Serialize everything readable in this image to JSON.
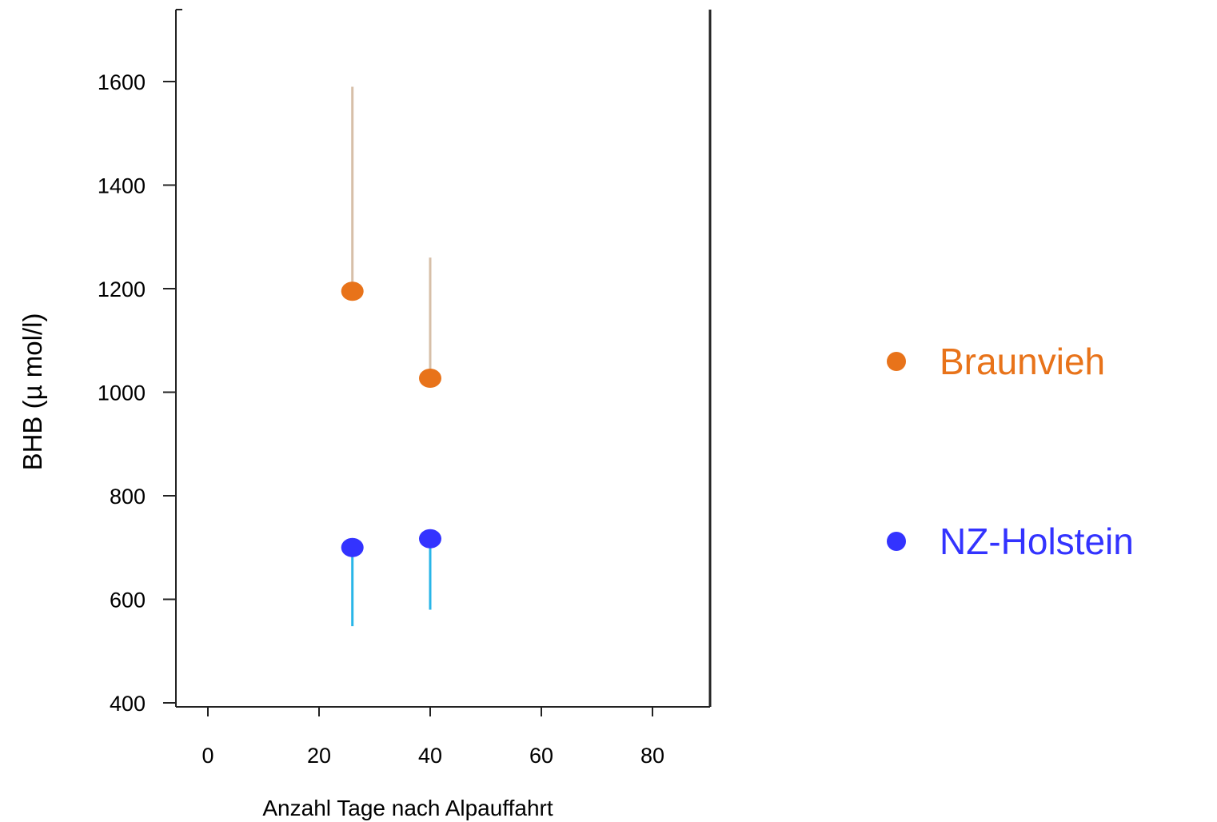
{
  "chart_data": {
    "type": "scatter",
    "title": "",
    "xlabel": "Anzahl Tage nach Alpauffahrt",
    "ylabel": "BHB (µ mol/l)",
    "xlim": [
      -7,
      91
    ],
    "ylim": [
      400,
      1700
    ],
    "x_ticks": [
      0,
      20,
      40,
      60,
      80
    ],
    "y_ticks": [
      400,
      600,
      800,
      1000,
      1200,
      1400,
      1600
    ],
    "x_tick_labels": [
      "0",
      "20",
      "40",
      "60",
      "80"
    ],
    "y_tick_labels": [
      "400",
      "600",
      "800",
      "1000",
      "1200",
      "1400",
      "1600"
    ],
    "grid": false,
    "legend_position": "right",
    "series": [
      {
        "name": "Braunvieh",
        "color": "#e8731a",
        "error_color": "#d7bfa8",
        "error_direction": "up",
        "points": [
          {
            "x": 26,
            "y": 1195,
            "err_bound": 1590
          },
          {
            "x": 40,
            "y": 1027,
            "err_bound": 1260
          }
        ]
      },
      {
        "name": "NZ-Holstein",
        "color": "#3333ff",
        "error_color": "#29b6e8",
        "error_direction": "down",
        "points": [
          {
            "x": 26,
            "y": 700,
            "err_bound": 548
          },
          {
            "x": 40,
            "y": 717,
            "err_bound": 580
          }
        ]
      }
    ]
  }
}
